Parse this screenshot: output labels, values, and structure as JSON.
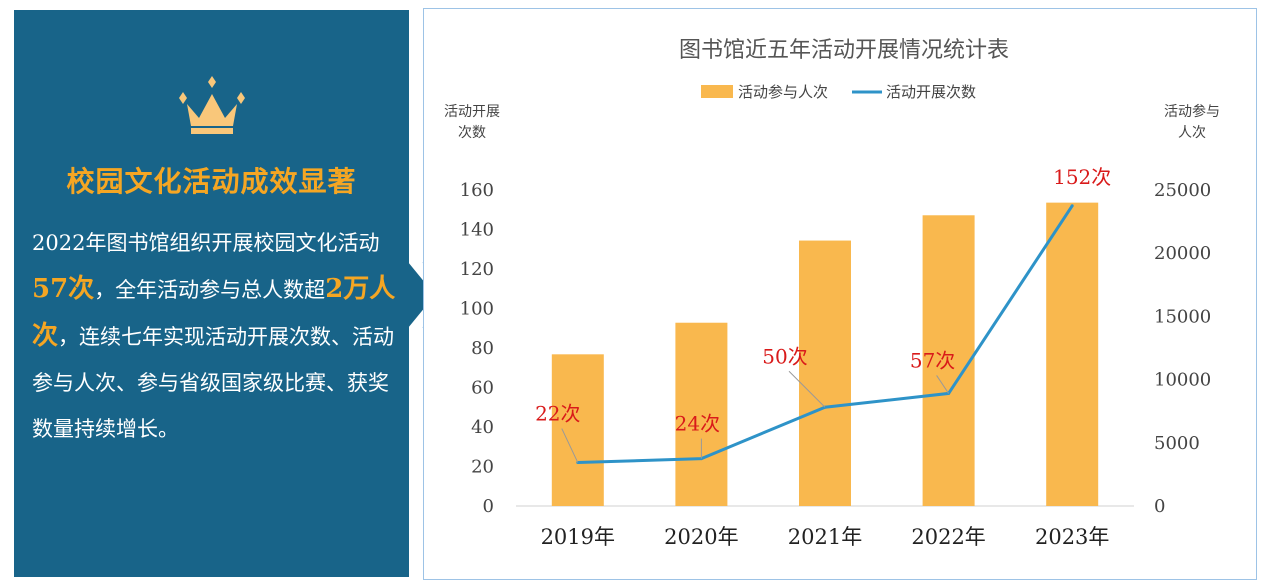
{
  "panel": {
    "title": "校园文化活动成效显著",
    "text_1": "2022年图书馆组织开展校园文化活动",
    "highlight_1": "57次",
    "text_2": "，全年活动参与总人数超",
    "highlight_2": "2万人次",
    "text_3": "，连续七年实现活动开展次数、活动参与人次、参与省级国家级比赛、获奖数量持续增长。",
    "colors": {
      "background": "#186489",
      "highlight": "#f5a623",
      "text": "#ffffff"
    },
    "icon": "crown-icon"
  },
  "chart_data": {
    "type": "bar+line",
    "title": "图书馆近五年活动开展情况统计表",
    "categories": [
      "2019年",
      "2020年",
      "2021年",
      "2022年",
      "2023年"
    ],
    "series": [
      {
        "name": "活动参与人次",
        "type": "bar",
        "axis": "right",
        "color": "#f9b84e",
        "values": [
          12000,
          14500,
          21000,
          23000,
          24000
        ]
      },
      {
        "name": "活动开展次数",
        "type": "line",
        "axis": "left",
        "color": "#2e93c8",
        "values": [
          22,
          24,
          50,
          57,
          152
        ],
        "labels": [
          "22次",
          "24次",
          "50次",
          "57次",
          "152次"
        ]
      }
    ],
    "y_left": {
      "label": "活动开展次数",
      "label_lines": [
        "活动开展",
        "次数"
      ],
      "min": 0,
      "max": 160,
      "step": 20,
      "ticks": [
        "0",
        "20",
        "40",
        "60",
        "80",
        "100",
        "120",
        "140",
        "160"
      ]
    },
    "y_right": {
      "label": "活动参与人次",
      "label_lines": [
        "活动参与",
        "人次"
      ],
      "min": 0,
      "max": 25000,
      "step": 5000,
      "ticks": [
        "0",
        "5000",
        "10000",
        "15000",
        "20000",
        "25000"
      ]
    },
    "legend_position": "top-center",
    "grid": false
  }
}
